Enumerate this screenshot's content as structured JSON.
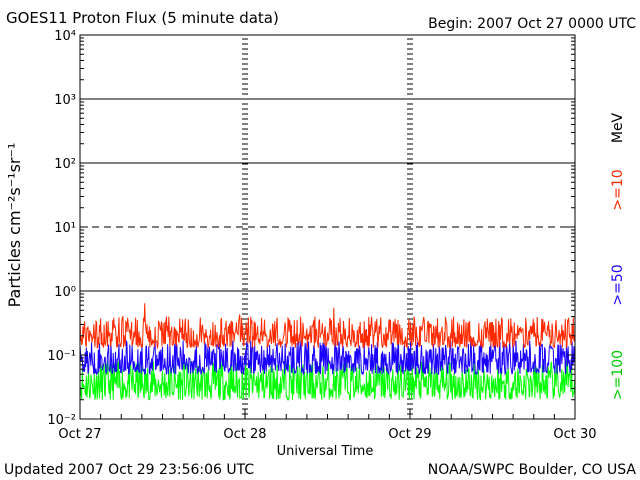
{
  "chart_data": {
    "type": "line",
    "title": "GOES11 Proton Flux (5 minute data)",
    "begin_label": "Begin: 2007 Oct 27 0000 UTC",
    "xlabel": "Universal Time",
    "ylabel": "Particles cm⁻²s⁻¹sr⁻¹",
    "y_scale": "log",
    "ylim": [
      0.01,
      10000
    ],
    "y_ticks": [
      {
        "value": 0.01,
        "label": "10⁻²"
      },
      {
        "value": 0.1,
        "label": "10⁻¹"
      },
      {
        "value": 1,
        "label": "10⁰"
      },
      {
        "value": 10,
        "label": "10¹"
      },
      {
        "value": 100,
        "label": "10²"
      },
      {
        "value": 1000,
        "label": "10³"
      },
      {
        "value": 10000,
        "label": "10⁴"
      }
    ],
    "reference_lines": [
      {
        "value": 10,
        "style": "dashed"
      },
      {
        "value": 1,
        "style": "solid"
      },
      {
        "value": 100,
        "style": "solid"
      },
      {
        "value": 1000,
        "style": "solid"
      }
    ],
    "x_ticks": [
      "Oct 27",
      "Oct 28",
      "Oct 29",
      "Oct 30"
    ],
    "xlim_days": [
      0,
      3
    ],
    "energy_unit": "MeV",
    "series": [
      {
        "name": ">=10",
        "color": "#ff2a00",
        "typical_range": [
          0.13,
          0.4
        ],
        "peak": 0.6
      },
      {
        "name": ">=50",
        "color": "#1a00ff",
        "typical_range": [
          0.05,
          0.17
        ]
      },
      {
        "name": ">=100",
        "color": "#00ff00",
        "typical_range": [
          0.02,
          0.08
        ]
      }
    ]
  },
  "footer": {
    "updated": "Updated 2007 Oct 29 23:56:06 UTC",
    "source": "NOAA/SWPC Boulder, CO USA"
  }
}
